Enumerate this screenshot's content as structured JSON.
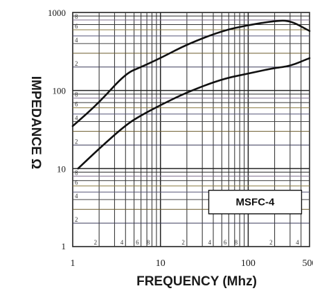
{
  "chart_data": {
    "type": "line",
    "title": "",
    "xlabel": "FREQUENCY (Mhz)",
    "ylabel": "IMPEDANCE Ω",
    "x_scale": "log",
    "y_scale": "log",
    "xlim": [
      1,
      500
    ],
    "ylim": [
      1,
      1000
    ],
    "grid": true,
    "x_ticks": [
      {
        "value": 1,
        "label": "1"
      },
      {
        "value": 10,
        "label": "10"
      },
      {
        "value": 100,
        "label": "100"
      },
      {
        "value": 500,
        "label": "500"
      }
    ],
    "y_ticks": [
      {
        "value": 1,
        "label": "1"
      },
      {
        "value": 10,
        "label": "10"
      },
      {
        "value": 100,
        "label": "100"
      },
      {
        "value": 1000,
        "label": "1000"
      }
    ],
    "x_minor_labels": [
      {
        "value": 2,
        "label": "2"
      },
      {
        "value": 4,
        "label": "4"
      },
      {
        "value": 6,
        "label": "6"
      },
      {
        "value": 8,
        "label": "8"
      },
      {
        "value": 20,
        "label": "2"
      },
      {
        "value": 40,
        "label": "4"
      },
      {
        "value": 60,
        "label": "6"
      },
      {
        "value": 80,
        "label": "8"
      },
      {
        "value": 200,
        "label": "2"
      },
      {
        "value": 400,
        "label": "4"
      }
    ],
    "y_minor_labels": [
      {
        "value": 2,
        "label": "2"
      },
      {
        "value": 4,
        "label": "4"
      },
      {
        "value": 6,
        "label": "6"
      },
      {
        "value": 8,
        "label": "8"
      },
      {
        "value": 20,
        "label": "2"
      },
      {
        "value": 40,
        "label": "4"
      },
      {
        "value": 60,
        "label": "6"
      },
      {
        "value": 80,
        "label": "8"
      },
      {
        "value": 200,
        "label": "2"
      },
      {
        "value": 400,
        "label": "4"
      },
      {
        "value": 600,
        "label": "6"
      },
      {
        "value": 800,
        "label": "8"
      }
    ],
    "series": [
      {
        "points": [
          [
            1,
            35
          ],
          [
            2,
            70
          ],
          [
            4,
            165
          ],
          [
            6,
            200
          ],
          [
            10,
            260
          ],
          [
            20,
            390
          ],
          [
            50,
            580
          ],
          [
            100,
            690
          ],
          [
            200,
            780
          ],
          [
            300,
            790
          ],
          [
            500,
            580
          ]
        ],
        "color": "#111111"
      },
      {
        "points": [
          [
            1.15,
            10
          ],
          [
            2,
            18
          ],
          [
            4,
            36
          ],
          [
            6,
            48
          ],
          [
            10,
            65
          ],
          [
            20,
            95
          ],
          [
            50,
            140
          ],
          [
            100,
            165
          ],
          [
            200,
            195
          ],
          [
            300,
            205
          ],
          [
            500,
            260
          ]
        ],
        "color": "#111111"
      }
    ],
    "annotations": [
      {
        "text": "MSFC-4",
        "x": 120,
        "y": 3.5
      }
    ]
  }
}
